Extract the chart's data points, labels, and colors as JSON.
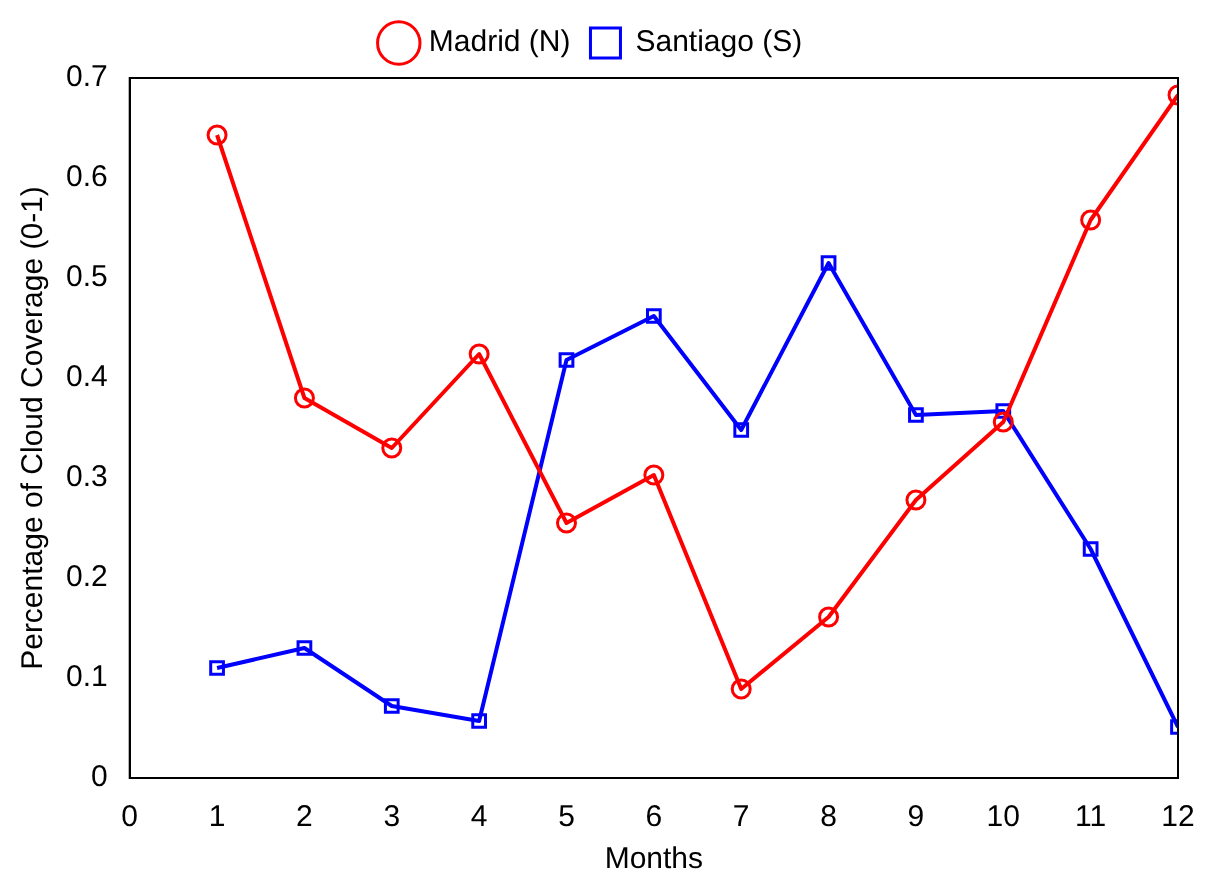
{
  "chart_data": {
    "type": "line",
    "xlabel": "Months",
    "ylabel": "Percentage of Cloud Coverage (0-1)",
    "x": [
      1,
      2,
      3,
      4,
      5,
      6,
      7,
      8,
      9,
      10,
      11,
      12
    ],
    "xlim": [
      0,
      12
    ],
    "xticks": [
      0,
      1,
      2,
      3,
      4,
      5,
      6,
      7,
      8,
      9,
      10,
      11,
      12
    ],
    "ylim": [
      0,
      0.7
    ],
    "yticks": [
      0,
      0.1,
      0.2,
      0.3,
      0.4,
      0.5,
      0.6,
      0.7
    ],
    "grid": false,
    "legend": "top",
    "line_style": "solid",
    "series": [
      {
        "name": "Madrid (N)",
        "color": "#ff0000",
        "marker": "circle",
        "values": [
          0.643,
          0.38,
          0.33,
          0.424,
          0.255,
          0.303,
          0.089,
          0.161,
          0.278,
          0.356,
          0.558,
          0.683
        ]
      },
      {
        "name": "Santiago (S)",
        "color": "#0000ff",
        "marker": "square",
        "values": [
          0.11,
          0.13,
          0.072,
          0.057,
          0.418,
          0.462,
          0.348,
          0.515,
          0.363,
          0.367,
          0.229,
          0.051
        ]
      }
    ]
  }
}
